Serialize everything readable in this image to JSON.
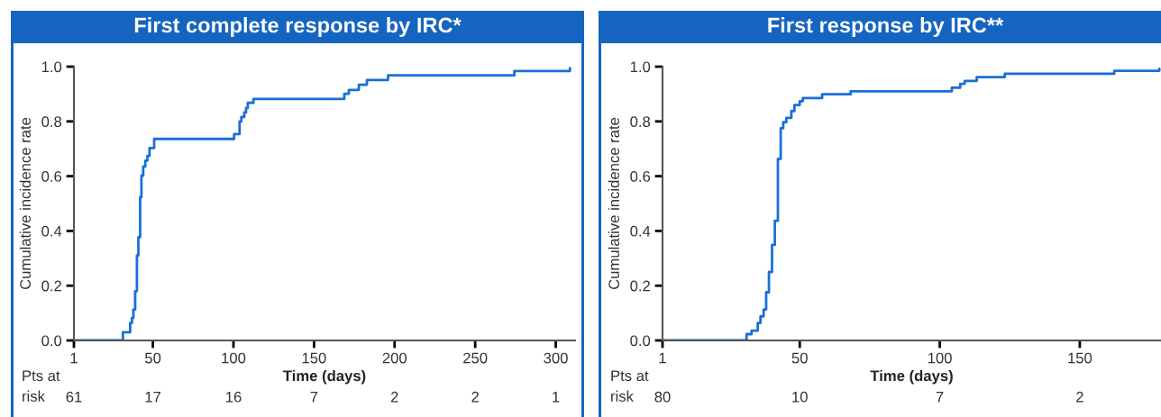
{
  "chart_data": [
    {
      "type": "step",
      "title": "First complete response by IRC*",
      "xlabel": "Time (days)",
      "ylabel": "Cumulative incidence rate",
      "series": [
        {
          "color": "#1a6fd6",
          "x": [
            1,
            31.4,
            35.9,
            37,
            37.9,
            39,
            40.1,
            41,
            42.1,
            42.9,
            44,
            45.3,
            46.6,
            47.9,
            50.8,
            100.4,
            103.8,
            104.9,
            106.7,
            107.8,
            108.9,
            112.4,
            168.8,
            171.6,
            177.8,
            182.8,
            195.9,
            274.3,
            308.8
          ],
          "values": [
            0,
            0.03,
            0.064,
            0.082,
            0.113,
            0.18,
            0.31,
            0.377,
            0.523,
            0.602,
            0.635,
            0.657,
            0.674,
            0.703,
            0.736,
            0.754,
            0.8,
            0.816,
            0.833,
            0.849,
            0.868,
            0.882,
            0.901,
            0.915,
            0.934,
            0.951,
            0.968,
            0.984,
            0.995
          ]
        }
      ],
      "xlim": [
        1,
        312
      ],
      "xticks": [
        1,
        50,
        100,
        150,
        200,
        250,
        300
      ],
      "ylim": [
        0,
        1
      ],
      "yticks": [
        {
          "value": 0,
          "label": "0.0"
        },
        {
          "value": 0.2,
          "label": "0.2"
        },
        {
          "value": 0.4,
          "label": "0.4"
        },
        {
          "value": 0.6,
          "label": "0.6"
        },
        {
          "value": 0.8,
          "label": "0.8"
        },
        {
          "value": 1,
          "label": "1.0"
        }
      ],
      "grid": false,
      "legend": false,
      "annotations": [
        "Pts at\nrisk",
        "61",
        "17",
        "16",
        "7",
        "2",
        "2",
        "1"
      ]
    },
    {
      "type": "step",
      "title": "First response by IRC**",
      "xlabel": "Time (days)",
      "ylabel": "Cumulative incidence rate",
      "series": [
        {
          "color": "#1a6fd6",
          "x": [
            1,
            31,
            32.8,
            35,
            36,
            37.1,
            38,
            39,
            40.1,
            41.1,
            42.2,
            43.2,
            44.1,
            45.2,
            47,
            48.1,
            50,
            51.1,
            58,
            68.2,
            104.3,
            107.3,
            108.9,
            113.2,
            123.2,
            162.3,
            178.4
          ],
          "values": [
            0,
            0.023,
            0.036,
            0.064,
            0.088,
            0.113,
            0.176,
            0.25,
            0.349,
            0.437,
            0.663,
            0.775,
            0.797,
            0.813,
            0.838,
            0.86,
            0.874,
            0.885,
            0.899,
            0.91,
            0.923,
            0.937,
            0.948,
            0.962,
            0.974,
            0.985,
            0.992
          ]
        }
      ],
      "xlim": [
        1,
        179
      ],
      "xticks": [
        1,
        50,
        100,
        150
      ],
      "ylim": [
        0,
        1
      ],
      "yticks": [
        {
          "value": 0,
          "label": "0.0"
        },
        {
          "value": 0.2,
          "label": "0.2"
        },
        {
          "value": 0.4,
          "label": "0.4"
        },
        {
          "value": 0.6,
          "label": "0.6"
        },
        {
          "value": 0.8,
          "label": "0.8"
        },
        {
          "value": 1,
          "label": "1.0"
        }
      ],
      "grid": false,
      "legend": false,
      "annotations": [
        "Pts at\nrisk",
        "80",
        "10",
        "7",
        "2"
      ]
    }
  ]
}
